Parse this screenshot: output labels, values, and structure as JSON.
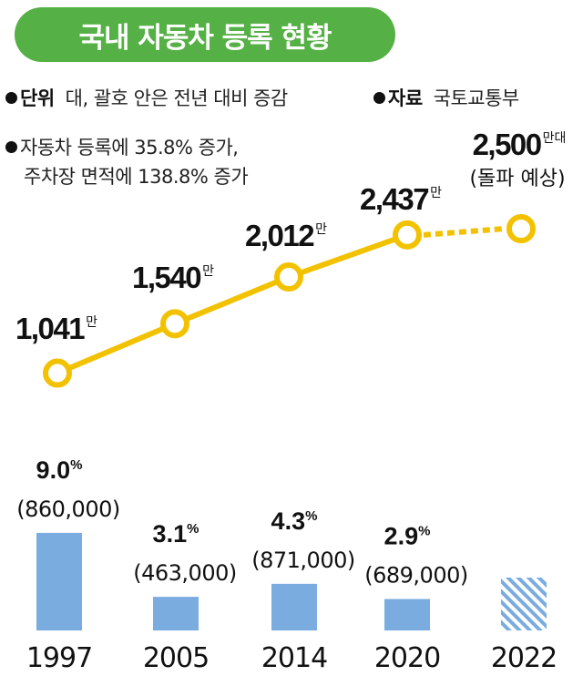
{
  "header": {
    "title": "국내 자동차 등록 현황"
  },
  "meta": {
    "unit_label": "단위",
    "unit_text": "대, 괄호 안은 전년 대비 증감",
    "source_label": "자료",
    "source_text": "국토교통부",
    "note_line1": "자동차 등록에 35.8% 증가,",
    "note_line2": "주차장 면적에 138.8% 증가"
  },
  "colors": {
    "accent": "#55b045",
    "line": "#f2c200",
    "bar": "#7aace0"
  },
  "chart_data": [
    {
      "type": "line",
      "x": [
        "1997",
        "2005",
        "2014",
        "2020",
        "2022"
      ],
      "values": [
        1041,
        1540,
        2012,
        2437,
        2500
      ],
      "value_labels": [
        "1,041",
        "1,540",
        "2,012",
        "2,437",
        "2,500"
      ],
      "unit_suffix": "만",
      "last_suffix": "만대",
      "last_note": "(돌파 예상)",
      "projected_last": true
    },
    {
      "type": "bar",
      "categories": [
        "1997",
        "2005",
        "2014",
        "2020",
        "2022"
      ],
      "values": [
        9.0,
        3.1,
        4.3,
        2.9,
        null
      ],
      "value_labels": [
        "9.0",
        "3.1",
        "4.3",
        "2.9",
        ""
      ],
      "percent_sign": "%",
      "sub_labels": [
        "(860,000)",
        "(463,000)",
        "(871,000)",
        "(689,000)",
        ""
      ],
      "projected_last": true
    }
  ]
}
